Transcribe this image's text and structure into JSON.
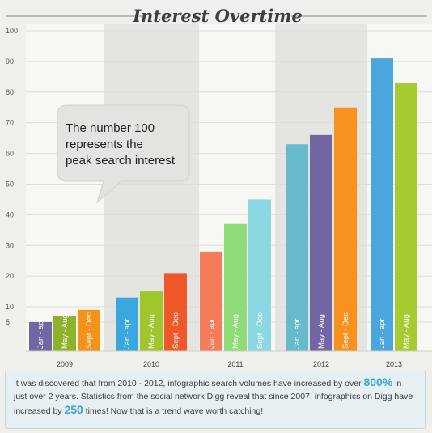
{
  "chart_data": {
    "type": "bar",
    "title": "Interest Overtime",
    "ylim": [
      0,
      100
    ],
    "yticks": [
      5,
      10,
      20,
      30,
      40,
      50,
      60,
      70,
      80,
      90,
      100
    ],
    "categories": [
      "2009",
      "2010",
      "2011",
      "2012",
      "2013"
    ],
    "series": [
      {
        "name": "Jan - apr",
        "values": [
          5,
          13,
          28,
          63,
          91
        ]
      },
      {
        "name": "May - Aug",
        "values": [
          7,
          15,
          37,
          66,
          83
        ]
      },
      {
        "name": "Sept - Dec",
        "values": [
          9,
          21,
          45,
          75,
          null
        ]
      }
    ],
    "colors": [
      [
        "#7466a3",
        "#8fb22d",
        "#f39318"
      ],
      [
        "#3ba7df",
        "#9fc62d",
        "#f0582a"
      ],
      [
        "#f47c5a",
        "#8fdb77",
        "#8dd7e3"
      ],
      [
        "#66bacb",
        "#7466a3",
        "#f7921e"
      ],
      [
        "#4aa6dc",
        "#a6cb30",
        null
      ]
    ],
    "bar_labels": [
      [
        "Jan - apr",
        "May - Aug",
        "Sept - Dec"
      ],
      [
        "Jan - apr",
        "May - Aug",
        "Sept - Dec"
      ],
      [
        "Jan - apr",
        "May - Aug",
        "Sept - Dec"
      ],
      [
        "Jan - apr",
        "May - Aug",
        "Sept - Dec"
      ],
      [
        "Jan - apr",
        "May - Aug"
      ]
    ],
    "grid": true,
    "shaded_bands": [
      "2010",
      "2012"
    ],
    "annotation": "The number 100 represents the peak search interest",
    "annotation_lines": [
      "The number 100",
      "represents the",
      "peak search interest"
    ]
  },
  "footer": {
    "text1": "It was discovered that from 2010 - 2012, infographic search volumes have increased by over ",
    "hl1": "800%",
    "text2": " in just over 2 years. Statistics from the social network Digg reveal that since 2007, infographics on Digg have increased by ",
    "hl2": "250",
    "text3": " times! Now that is a trend wave worth catching!"
  }
}
